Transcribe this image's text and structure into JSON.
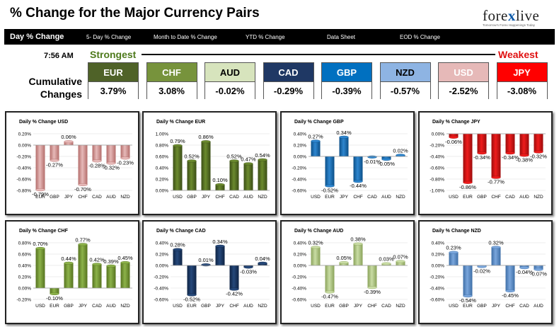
{
  "header": {
    "title": "% Change for the Major Currency Pairs"
  },
  "logo": {
    "text_a": "fore",
    "text_b": "x",
    "text_c": "live",
    "tagline": "Tomorrow's Forex Happenings Today"
  },
  "nav": [
    "Day % Change",
    "5- Day % Change",
    "Month to Date % Change",
    "YTD % Change",
    "Data Sheet",
    "EOD % Change"
  ],
  "time": "7:56 AM",
  "strongest_label": "Strongest",
  "weakest_label": "Weakest",
  "cumulative_label_1": "Cumulative",
  "cumulative_label_2": "Changes",
  "cumulative": [
    {
      "code": "EUR",
      "value": "3.79%",
      "color": "#4f6228",
      "text": "#ffffff"
    },
    {
      "code": "CHF",
      "value": "3.08%",
      "color": "#77933c",
      "text": "#ffffff"
    },
    {
      "code": "AUD",
      "value": "-0.02%",
      "color": "#d7e4bd",
      "text": "#000000"
    },
    {
      "code": "CAD",
      "value": "-0.29%",
      "color": "#1f3864",
      "text": "#ffffff"
    },
    {
      "code": "GBP",
      "value": "-0.39%",
      "color": "#0070c0",
      "text": "#ffffff"
    },
    {
      "code": "NZD",
      "value": "-0.57%",
      "color": "#8eb4e3",
      "text": "#000000"
    },
    {
      "code": "USD",
      "value": "-2.52%",
      "color": "#e6b9b8",
      "text": "#ffffff"
    },
    {
      "code": "JPY",
      "value": "-3.08%",
      "color": "#ff0000",
      "text": "#ffffff"
    }
  ],
  "chart_data": [
    {
      "type": "bar",
      "title": "Daily % Change USD",
      "categories": [
        "EUR",
        "GBP",
        "JPY",
        "CHF",
        "CAD",
        "AUD",
        "NZD"
      ],
      "values": [
        -0.79,
        -0.27,
        0.06,
        -0.7,
        -0.28,
        -0.32,
        -0.23
      ],
      "labels": [
        "-0.79%",
        "-0.27%",
        "0.06%",
        "-0.70%",
        "-0.28%",
        "-0.32%",
        "-0.23%"
      ],
      "ylim": [
        -0.8,
        0.2
      ],
      "ticks": [
        "0.20%",
        "0.00%",
        "-0.20%",
        "-0.40%",
        "-0.60%",
        "-0.80%"
      ],
      "color": "#e6b9b8",
      "dark": "#b46d6b"
    },
    {
      "type": "bar",
      "title": "Daily % Change EUR",
      "categories": [
        "USD",
        "GBP",
        "JPY",
        "CHF",
        "CAD",
        "AUD",
        "NZD"
      ],
      "values": [
        0.79,
        0.52,
        0.86,
        0.1,
        0.52,
        0.47,
        0.54
      ],
      "labels": [
        "0.79%",
        "0.52%",
        "0.86%",
        "0.10%",
        "0.52%",
        "0.47%",
        "0.54%"
      ],
      "ylim": [
        0,
        1.0
      ],
      "ticks": [
        "1.00%",
        "0.80%",
        "0.60%",
        "0.40%",
        "0.20%",
        "0.00%"
      ],
      "color": "#6b8a2e",
      "dark": "#3a4d16"
    },
    {
      "type": "bar",
      "title": "Daily % Change GBP",
      "categories": [
        "USD",
        "EUR",
        "JPY",
        "CHF",
        "CAD",
        "AUD",
        "NZD"
      ],
      "values": [
        0.27,
        -0.52,
        0.34,
        -0.44,
        -0.01,
        -0.05,
        0.02
      ],
      "labels": [
        "0.27%",
        "-0.52%",
        "0.34%",
        "-0.44%",
        "-0.01%",
        "-0.05%",
        "0.02%"
      ],
      "ylim": [
        -0.6,
        0.4
      ],
      "ticks": [
        "0.40%",
        "0.20%",
        "0.00%",
        "-0.20%",
        "-0.40%",
        "-0.60%"
      ],
      "color": "#2e86cf",
      "dark": "#0b4f87"
    },
    {
      "type": "bar",
      "title": "Daily % Change JPY",
      "categories": [
        "USD",
        "EUR",
        "GBP",
        "CHF",
        "CAD",
        "AUD",
        "NZD"
      ],
      "values": [
        -0.06,
        -0.86,
        -0.34,
        -0.77,
        -0.34,
        -0.38,
        -0.32
      ],
      "labels": [
        "-0.06%",
        "-0.86%",
        "-0.34%",
        "-0.77%",
        "-0.34%",
        "-0.38%",
        "-0.32%"
      ],
      "ylim": [
        -1.0,
        0
      ],
      "ticks": [
        "0.00%",
        "-0.20%",
        "-0.40%",
        "-0.60%",
        "-0.80%",
        "-1.00%"
      ],
      "color": "#ee1c1c",
      "dark": "#9c0c0c"
    },
    {
      "type": "bar",
      "title": "Daily % Change CHF",
      "categories": [
        "USD",
        "EUR",
        "GBP",
        "JPY",
        "CAD",
        "AUD",
        "NZD"
      ],
      "values": [
        0.7,
        -0.1,
        0.44,
        0.77,
        0.42,
        0.39,
        0.45
      ],
      "labels": [
        "0.70%",
        "-0.10%",
        "0.44%",
        "0.77%",
        "0.42%",
        "0.39%",
        "0.45%"
      ],
      "ylim": [
        -0.2,
        0.8
      ],
      "ticks": [
        "0.80%",
        "0.60%",
        "0.40%",
        "0.20%",
        "0.00%",
        "-0.20%"
      ],
      "color": "#8cb24a",
      "dark": "#56731f"
    },
    {
      "type": "bar",
      "title": "Daily % Change CAD",
      "categories": [
        "USD",
        "EUR",
        "GBP",
        "JPY",
        "CHF",
        "AUD",
        "NZD"
      ],
      "values": [
        0.28,
        -0.52,
        0.01,
        0.34,
        -0.42,
        -0.03,
        0.04
      ],
      "labels": [
        "0.28%",
        "-0.52%",
        "0.01%",
        "0.34%",
        "-0.42%",
        "-0.03%",
        "0.04%"
      ],
      "ylim": [
        -0.6,
        0.4
      ],
      "ticks": [
        "0.40%",
        "0.20%",
        "0.00%",
        "-0.20%",
        "-0.40%",
        "-0.60%"
      ],
      "color": "#25487a",
      "dark": "#0f2444"
    },
    {
      "type": "bar",
      "title": "Daily % Change AUD",
      "categories": [
        "USD",
        "EUR",
        "GBP",
        "JPY",
        "CHF",
        "CAD",
        "NZD"
      ],
      "values": [
        0.32,
        -0.47,
        0.05,
        0.38,
        -0.39,
        0.03,
        0.07
      ],
      "labels": [
        "0.32%",
        "-0.47%",
        "0.05%",
        "0.38%",
        "-0.39%",
        "0.03%",
        "0.07%"
      ],
      "ylim": [
        -0.6,
        0.4
      ],
      "ticks": [
        "0.40%",
        "0.20%",
        "0.00%",
        "-0.20%",
        "-0.40%",
        "-0.60%"
      ],
      "color": "#c9dca4",
      "dark": "#8aa35a"
    },
    {
      "type": "bar",
      "title": "Daily % Change NZD",
      "categories": [
        "USD",
        "EUR",
        "GBP",
        "JPY",
        "CHF",
        "CAD",
        "AUD"
      ],
      "values": [
        0.23,
        -0.54,
        -0.02,
        0.32,
        -0.45,
        -0.04,
        -0.07
      ],
      "labels": [
        "0.23%",
        "-0.54%",
        "-0.02%",
        "0.32%",
        "-0.45%",
        "-0.04%",
        "-0.07%"
      ],
      "ylim": [
        -0.6,
        0.4
      ],
      "ticks": [
        "0.40%",
        "0.20%",
        "0.00%",
        "-0.20%",
        "-0.40%",
        "-0.60%"
      ],
      "color": "#7aa6dc",
      "dark": "#3e6ea6"
    }
  ]
}
